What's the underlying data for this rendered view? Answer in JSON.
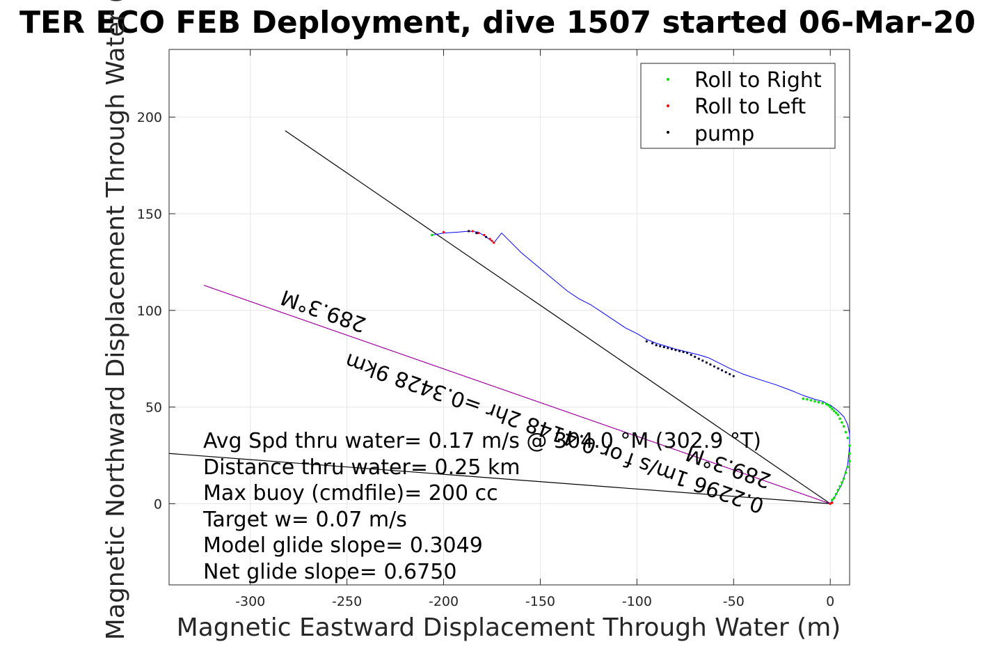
{
  "chart_data": {
    "type": "line",
    "title": "TER ECO FEB Deployment, dive 1507 started 06-Mar-20",
    "xlabel": "Magnetic Eastward Displacement Through Water (m)",
    "ylabel": "Magnetic Northward Displacement Through Water (",
    "xlim": [
      -342,
      10
    ],
    "ylim": [
      -42,
      235
    ],
    "xticks": [
      -300,
      -250,
      -200,
      -150,
      -100,
      -50,
      0
    ],
    "yticks": [
      0,
      50,
      100,
      150,
      200
    ],
    "grid": true,
    "legend_position": "top-right",
    "legend": [
      {
        "label": "Roll to Right",
        "color": "#00e000"
      },
      {
        "label": "Roll to Left",
        "color": "#ff0000"
      },
      {
        "label": "pump",
        "color": "#000000"
      }
    ],
    "track": {
      "name": "track",
      "color": "#0000ff",
      "x": [
        0,
        2,
        6,
        9,
        10,
        10,
        9,
        7,
        4,
        0,
        -4,
        -8,
        -14,
        -20,
        -28,
        -36,
        -45,
        -52,
        -58,
        -63,
        -68,
        -72,
        -76,
        -80,
        -85,
        -90,
        -95,
        -100,
        -106,
        -112,
        -118,
        -124,
        -130,
        -136,
        -142,
        -148,
        -154,
        -160,
        -166,
        -170,
        -174,
        -178,
        -182,
        -187,
        -192,
        -200,
        -206
      ],
      "y": [
        0,
        3,
        10,
        20,
        30,
        36,
        41,
        45,
        48,
        51,
        53,
        54,
        56,
        58.5,
        61.5,
        64,
        67,
        70,
        73,
        75.5,
        77,
        78,
        79,
        80,
        81.5,
        83,
        85,
        88,
        91,
        95,
        99,
        103,
        106,
        110,
        115,
        120,
        125,
        130,
        136,
        140,
        135,
        138,
        140.5,
        141,
        140.5,
        140,
        139
      ]
    },
    "roll_right_points": {
      "x": [
        0,
        1,
        2,
        3,
        4,
        5,
        6,
        7,
        8,
        9,
        10,
        10,
        10,
        9,
        8,
        7,
        6,
        5,
        4,
        3,
        2,
        1,
        0,
        -1,
        -2,
        -4,
        -6,
        -8,
        -10,
        -12,
        -14,
        -206
      ],
      "y": [
        0,
        2,
        3,
        5,
        7,
        9,
        11,
        13,
        16,
        19,
        22,
        26,
        30,
        34,
        37,
        40,
        42,
        44,
        46,
        47,
        48,
        49,
        50,
        51,
        51.5,
        52,
        52.5,
        53,
        53.5,
        54,
        54.3,
        139
      ]
    },
    "roll_left_points": {
      "x": [
        0,
        1,
        -200,
        -187,
        -185,
        -182,
        -179,
        -176,
        -175,
        -174
      ],
      "y": [
        0,
        0.5,
        140.5,
        141,
        141,
        140,
        139,
        137,
        136,
        135
      ]
    },
    "pump_points": {
      "x": [
        -95,
        -92,
        -90,
        -88,
        -86,
        -84,
        -82,
        -80,
        -78,
        -76,
        -74,
        -72,
        -70,
        -68,
        -66,
        -64,
        -62,
        -60,
        -58,
        -56,
        -54,
        -52,
        -50,
        -187,
        -183,
        -178
      ],
      "y": [
        84,
        83,
        82,
        81.5,
        81,
        80.5,
        80,
        79.5,
        79,
        78.5,
        78,
        77,
        76,
        75,
        74,
        73,
        72,
        71,
        70,
        69,
        68,
        67,
        66,
        141,
        140,
        138
      ]
    },
    "black_line_1": {
      "x": [
        0,
        -282
      ],
      "y": [
        0,
        193
      ]
    },
    "black_line_2": {
      "x": [
        0,
        -342
      ],
      "y": [
        0,
        26
      ]
    },
    "magenta_line": {
      "x": [
        0,
        -324
      ],
      "y": [
        0,
        113
      ]
    },
    "annotations": {
      "heading_rotated": "289.3°M",
      "speed_rotated": "0.2296 1m/s for0.4148 2hr =0.3428 9km",
      "speed_rotated_a": "0.2296 1m/s f",
      "speed_rotated_b": "or 0.4148 2hr =0.3428 9km",
      "heading_rotated_near": "289.3°M"
    },
    "stats": [
      "Avg Spd thru water=  0.17 m/s @ 304.0 °M (302.9 °T)",
      "Distance thru water=  0.25 km",
      "Max buoy (cmdfile)= 200 cc",
      "Target w= 0.07 m/s",
      "Model glide slope= 0.3049",
      "Net glide slope= 0.6750"
    ]
  }
}
